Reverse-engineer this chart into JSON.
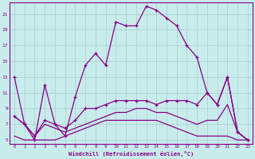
{
  "xlabel": "Windchill (Refroidissement éolien,°C)",
  "background_color": "#c8ecec",
  "line_color": "#880088",
  "grid_color": "#aacccc",
  "xlim": [
    -0.5,
    23.5
  ],
  "ylim": [
    4.5,
    22.5
  ],
  "xticks": [
    0,
    1,
    2,
    3,
    4,
    5,
    6,
    7,
    8,
    9,
    10,
    11,
    12,
    13,
    14,
    15,
    16,
    17,
    18,
    19,
    20,
    21,
    22,
    23
  ],
  "yticks": [
    5,
    7,
    9,
    11,
    13,
    15,
    17,
    19,
    21
  ],
  "series1_main": [
    13,
    7,
    5,
    12,
    7,
    5.5,
    10.5,
    14.5,
    16,
    14.5,
    20,
    19.5,
    19.5,
    22,
    21.5,
    20.5,
    19.5,
    17,
    15.5,
    11,
    9.5,
    13,
    6,
    5
  ],
  "series3_mid_marked": [
    8,
    7,
    5.5,
    7.5,
    7,
    6.5,
    7.5,
    9,
    9,
    9.5,
    10,
    10,
    10,
    10,
    9.5,
    10,
    10,
    10,
    9.5,
    11,
    9.5,
    13,
    6,
    5
  ],
  "series4_mid_smooth": [
    8,
    7,
    5.5,
    7,
    6.5,
    6,
    6.5,
    7,
    7.5,
    8,
    8.5,
    8.5,
    9,
    9,
    8.5,
    8.5,
    8,
    7.5,
    7,
    7.5,
    7.5,
    9.5,
    6,
    5
  ],
  "series5_bottom": [
    5.5,
    5,
    5,
    5,
    5,
    5.5,
    6,
    6.5,
    7,
    7.5,
    7.5,
    7.5,
    7.5,
    7.5,
    7.5,
    7,
    6.5,
    6,
    5.5,
    5.5,
    5.5,
    5.5,
    5,
    5
  ]
}
